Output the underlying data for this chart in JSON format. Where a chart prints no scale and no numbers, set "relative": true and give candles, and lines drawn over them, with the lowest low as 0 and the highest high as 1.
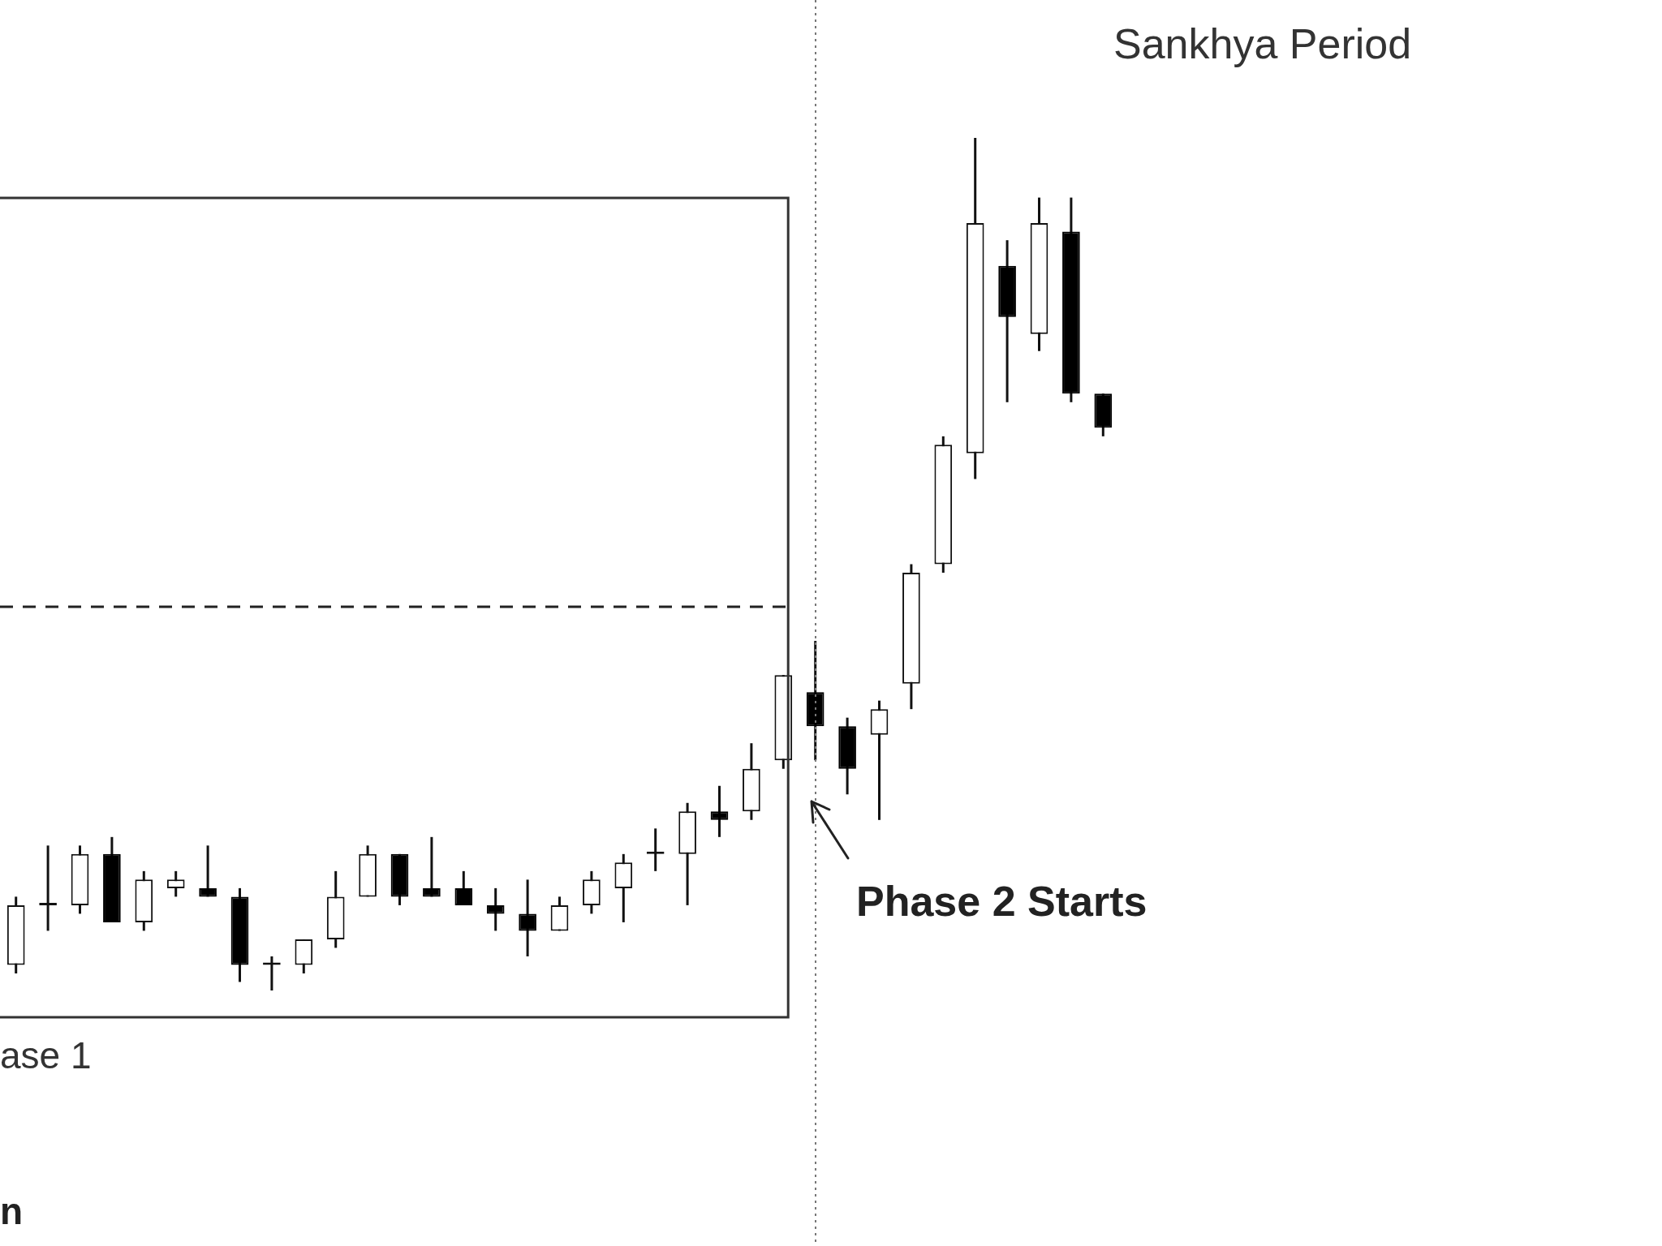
{
  "chart_data": {
    "type": "candlestick",
    "relative": true,
    "categories": [
      null,
      null,
      null,
      null,
      null,
      null,
      null,
      null,
      null,
      null,
      null,
      null,
      null,
      null,
      null,
      null,
      null,
      null,
      null,
      null,
      null,
      null,
      null,
      null,
      null,
      null,
      null,
      null,
      null,
      null,
      null,
      null,
      null,
      null,
      null
    ],
    "ohlc": [
      [
        0.03,
        0.11,
        0.02,
        0.1
      ],
      [
        0.1,
        0.17,
        0.07,
        0.1
      ],
      [
        0.1,
        0.17,
        0.09,
        0.16
      ],
      [
        0.16,
        0.18,
        0.08,
        0.08
      ],
      [
        0.08,
        0.14,
        0.07,
        0.13
      ],
      [
        0.12,
        0.14,
        0.11,
        0.13
      ],
      [
        0.12,
        0.17,
        0.11,
        0.11
      ],
      [
        0.11,
        0.12,
        0.01,
        0.03
      ],
      [
        0.03,
        0.04,
        0,
        0.03
      ],
      [
        0.03,
        0.06,
        0.02,
        0.06
      ],
      [
        0.06,
        0.14,
        0.05,
        0.11
      ],
      [
        0.11,
        0.17,
        0.11,
        0.16
      ],
      [
        0.16,
        0.16,
        0.1,
        0.11
      ],
      [
        0.12,
        0.18,
        0.11,
        0.11
      ],
      [
        0.12,
        0.14,
        0.1,
        0.1
      ],
      [
        0.1,
        0.12,
        0.07,
        0.09
      ],
      [
        0.09,
        0.13,
        0.04,
        0.07
      ],
      [
        0.07,
        0.11,
        0.07,
        0.1
      ],
      [
        0.1,
        0.14,
        0.09,
        0.13
      ],
      [
        0.12,
        0.16,
        0.08,
        0.15
      ],
      [
        0.16,
        0.19,
        0.14,
        0.16
      ],
      [
        0.16,
        0.22,
        0.1,
        0.21
      ],
      [
        0.21,
        0.24,
        0.18,
        0.2
      ],
      [
        0.21,
        0.29,
        0.2,
        0.26
      ],
      [
        0.27,
        0.37,
        0.26,
        0.37
      ],
      [
        0.35,
        0.41,
        0.27,
        0.31
      ],
      [
        0.31,
        0.32,
        0.23,
        0.26
      ],
      [
        0.3,
        0.34,
        0.2,
        0.33
      ],
      [
        0.36,
        0.5,
        0.33,
        0.49
      ],
      [
        0.5,
        0.65,
        0.49,
        0.64
      ],
      [
        0.63,
        1,
        0.6,
        0.9
      ],
      [
        0.85,
        0.88,
        0.69,
        0.79
      ],
      [
        0.77,
        0.93,
        0.75,
        0.9
      ],
      [
        0.89,
        0.93,
        0.69,
        0.7
      ],
      [
        0.7,
        0.7,
        0.65,
        0.66
      ]
    ],
    "ref_lines": [
      {
        "axis": "y",
        "value": 0.45,
        "line_style": "dashed",
        "color": "#222222"
      }
    ],
    "annotations": [
      "Sankhya Period",
      "Phase 2 Starts",
      "ase 1",
      "n"
    ]
  }
}
